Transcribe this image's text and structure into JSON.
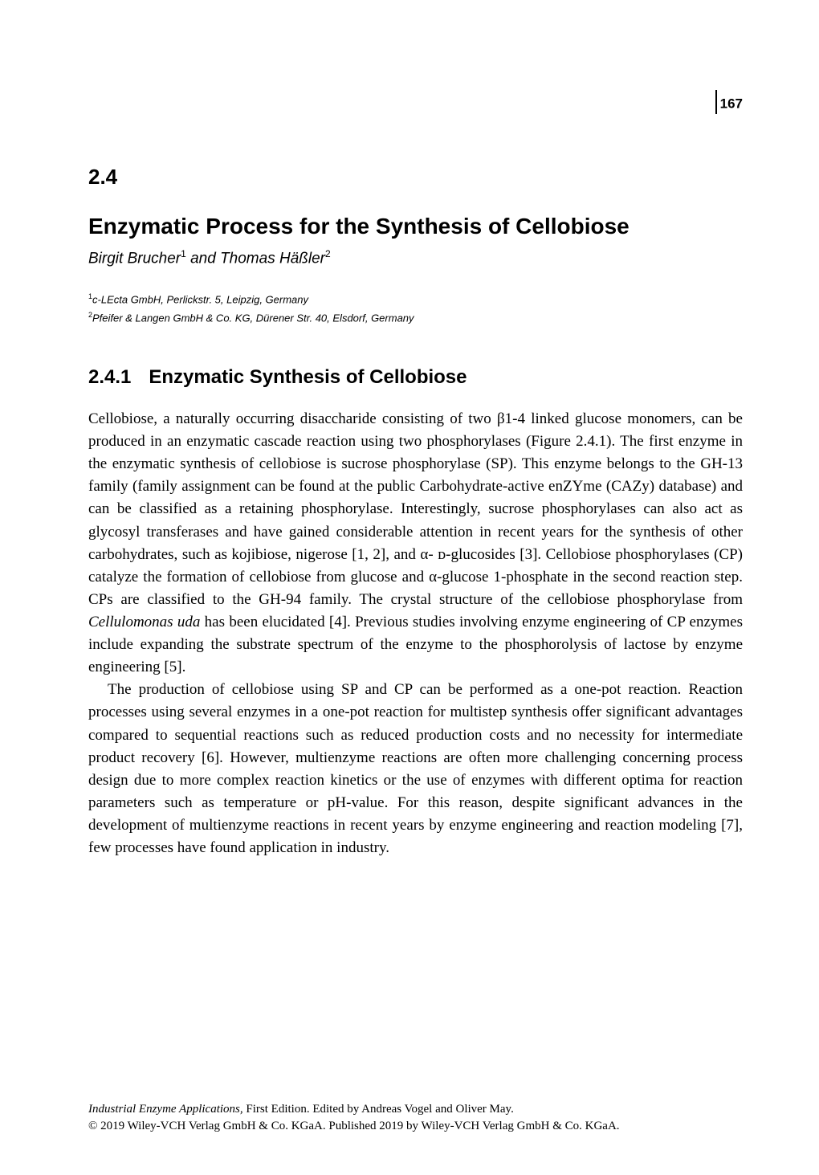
{
  "page_number": "167",
  "chapter_number": "2.4",
  "chapter_title": "Enzymatic Process for the Synthesis of Cellobiose",
  "authors": {
    "author1": "Birgit Brucher",
    "author1_sup": "1",
    "connector": " and ",
    "author2": "Thomas Häßler",
    "author2_sup": "2"
  },
  "affiliations": {
    "aff1_sup": "1",
    "aff1": "c-LEcta GmbH, Perlickstr. 5, Leipzig, Germany",
    "aff2_sup": "2",
    "aff2": "Pfeifer & Langen GmbH & Co. KG, Dürener Str. 40, Elsdorf, Germany"
  },
  "section": {
    "number": "2.4.1",
    "title": "Enzymatic Synthesis of Cellobiose"
  },
  "paragraphs": {
    "p1": "Cellobiose, a naturally occurring disaccharide consisting of two β1-4 linked glucose monomers, can be produced in an enzymatic cascade reaction using two phosphorylases (Figure 2.4.1). The first enzyme in the enzymatic synthesis of cellobiose is sucrose phosphorylase (SP). This enzyme belongs to the GH-13 family (family assignment can be found at the public Carbohydrate-active enZYme (CAZy) database) and can be classified as a retaining phosphorylase. Interestingly, sucrose phosphorylases can also act as glycosyl transferases and have gained considerable attention in recent years for the synthesis of other carbohydrates, such as kojibiose, nigerose [1, 2], and α- ᴅ-glucosides [3]. Cellobiose phosphorylases (CP) catalyze the formation of cellobiose from glucose and α-glucose 1-phosphate in the second reaction step. CPs are classified to the GH-94 family. The crystal structure of the cellobiose phosphorylase from ",
    "p1_italic": "Cellulomonas uda",
    "p1_cont": " has been elucidated [4]. Previous studies involving enzyme engineering of CP enzymes include expanding the substrate spectrum of the enzyme to the phosphorolysis of lactose by enzyme engineering [5].",
    "p2": "The production of cellobiose using SP and CP can be performed as a one-pot reaction. Reaction processes using several enzymes in a one-pot reaction for multistep synthesis offer significant advantages compared to sequential reactions such as reduced production costs and no necessity for intermediate product recovery [6]. However, multienzyme reactions are often more challenging concerning process design due to more complex reaction kinetics or the use of enzymes with different optima for reaction parameters such as temperature or pH-value. For this reason, despite significant advances in the development of multienzyme reactions in recent years by enzyme engineering and reaction modeling [7], few processes have found application in industry."
  },
  "footer": {
    "line1_italic": "Industrial Enzyme Applications,",
    "line1_rest": " First Edition. Edited by Andreas Vogel and Oliver May.",
    "line2": "© 2019 Wiley-VCH Verlag GmbH & Co. KGaA. Published 2019 by Wiley-VCH Verlag GmbH & Co. KGaA."
  },
  "colors": {
    "text": "#000000",
    "background": "#ffffff"
  },
  "typography": {
    "body_font": "Minion Pro, Times New Roman, serif",
    "heading_font": "Myriad Pro, Arial, sans-serif",
    "body_fontsize": 19,
    "chapter_number_fontsize": 26,
    "chapter_title_fontsize": 28,
    "authors_fontsize": 19,
    "affiliation_fontsize": 13,
    "section_heading_fontsize": 24,
    "footer_fontsize": 15,
    "page_number_fontsize": 17
  }
}
